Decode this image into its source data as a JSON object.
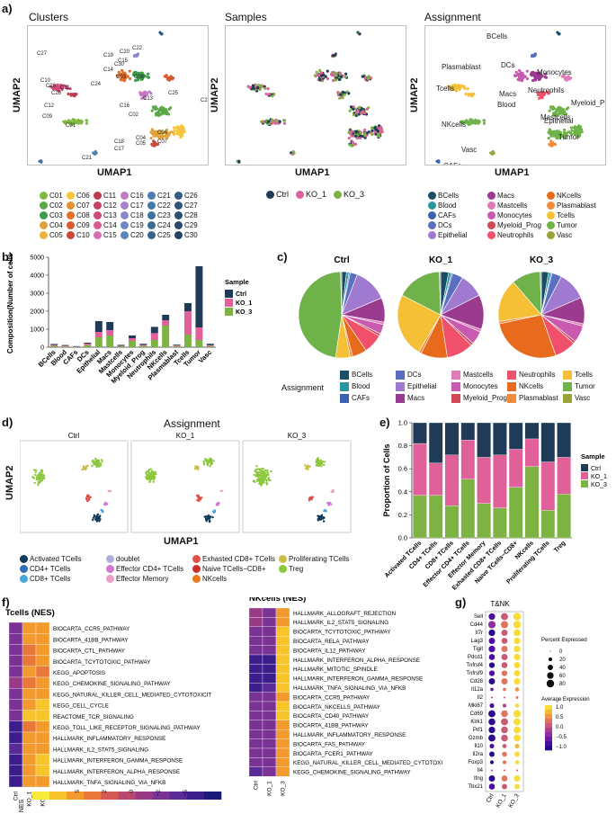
{
  "panels": {
    "a": "a)",
    "b": "b)",
    "c": "c)",
    "d": "d)",
    "e": "e)",
    "f": "f)",
    "g": "g)"
  },
  "umap_titles": {
    "clusters": "Clusters",
    "samples": "Samples",
    "assignment": "Assignment"
  },
  "axes": {
    "umap1": "UMAP1",
    "umap2": "UMAP2"
  },
  "clusters": {
    "labels": [
      "C01",
      "C02",
      "C03",
      "C04",
      "C05",
      "C06",
      "C07",
      "C08",
      "C09",
      "C10",
      "C11",
      "C12",
      "C13",
      "C14",
      "C15",
      "C16",
      "C17",
      "C18",
      "C19",
      "C20",
      "C21",
      "C22",
      "C23",
      "C24",
      "C25",
      "C26",
      "C27",
      "C28",
      "C29",
      "C30"
    ],
    "colors": [
      "#7fba3f",
      "#5aa847",
      "#3e9b4a",
      "#e0a33a",
      "#f0b43c",
      "#f6c63d",
      "#e8912f",
      "#e36f2a",
      "#d85a2e",
      "#c9483a",
      "#bd3c48",
      "#c44461",
      "#cf4a7a",
      "#d85b95",
      "#d470b0",
      "#c27bc3",
      "#a883c8",
      "#8a88c9",
      "#6f88c5",
      "#5a85bd",
      "#4b7fb2",
      "#447aa9",
      "#3f729e",
      "#3b6b95",
      "#37648b",
      "#335d82",
      "#2f557a",
      "#2b4f72",
      "#28496b",
      "#244263"
    ],
    "map_labels": [
      "C01",
      "C02",
      "C03",
      "C04",
      "C05",
      "C06",
      "C07",
      "C08",
      "C09",
      "C10",
      "C11",
      "C12",
      "C13",
      "C14",
      "C15",
      "C16",
      "C17",
      "C18",
      "C19",
      "C20",
      "C21",
      "C22",
      "C23",
      "C24",
      "C25",
      "C26",
      "C27",
      "C28",
      "C29",
      "C30"
    ]
  },
  "samples": {
    "names": [
      "Ctrl",
      "KO_1",
      "KO_3"
    ],
    "colors": [
      "#1f3b57",
      "#e0609a",
      "#7db342"
    ]
  },
  "assignment": {
    "names": [
      "BCells",
      "Blood",
      "CAFs",
      "DCs",
      "Epithelial",
      "Macs",
      "Mastcells",
      "Monocytes",
      "Myeloid_Prog",
      "Neutrophils",
      "NKcells",
      "Plasmablast",
      "Tcells",
      "Tumor",
      "Vasc"
    ],
    "colors": [
      "#1c4d66",
      "#2a96a0",
      "#3a62b0",
      "#5b6fc0",
      "#a07ad0",
      "#9a3b8f",
      "#e07ab8",
      "#c85ab0",
      "#cf4a55",
      "#f0506a",
      "#e86a1c",
      "#f08c3c",
      "#f6c036",
      "#6fb24a",
      "#9aa33a"
    ],
    "map_labels": [
      "BCells",
      "Plasmablast",
      "DCs",
      "Monocytes",
      "Tcells",
      "Neutrophils",
      "Macs",
      "Mastcells",
      "Blood",
      "Myeloid_Prog",
      "Epithelial",
      "NKcells",
      "Tumor",
      "Vasc",
      "CAFs"
    ],
    "legend_title": "Assignment"
  },
  "tnk": {
    "names": [
      "Activated TCells",
      "CD4+ TCells",
      "CD8+ TCells",
      "doublet",
      "Effector CD4+ TCells",
      "Effector Memory",
      "Exhasted CD8+ TCells",
      "Naive TCells−CD8+",
      "NKcells",
      "Proliferating TCells",
      "Treg"
    ],
    "colors": [
      "#123d5a",
      "#2f70b8",
      "#4aa6d8",
      "#b0b0d8",
      "#d07ad0",
      "#e8a0c8",
      "#e0504a",
      "#c83030",
      "#e87a1c",
      "#c9c04a",
      "#8cc83c"
    ],
    "title": "Assignment",
    "facets": [
      "Ctrl",
      "KO_1",
      "KO_3"
    ]
  },
  "chart_data": [
    {
      "type": "bar",
      "title": "",
      "xlabel": "",
      "ylabel": "Composition(Number of cells)",
      "ylim": [
        0,
        5000
      ],
      "yticks": [
        0,
        1000,
        2000,
        3000,
        4000,
        5000
      ],
      "categories": [
        "BCells",
        "Blood",
        "CAFs",
        "DCs",
        "Epithelial",
        "Macs",
        "Mastcells",
        "Monocytes",
        "Myeloid_Prog",
        "Neutrophils",
        "NKcells",
        "Plasmablast",
        "Tcells",
        "Tumor",
        "Vasc"
      ],
      "legend_title": "Sample",
      "series": [
        {
          "name": "Ctrl",
          "color": "#1f3b57",
          "values": [
            50,
            40,
            20,
            50,
            600,
            450,
            50,
            150,
            60,
            350,
            300,
            40,
            450,
            3400,
            80
          ]
        },
        {
          "name": "KO_1",
          "color": "#e0609a",
          "values": [
            60,
            40,
            20,
            80,
            300,
            300,
            30,
            150,
            60,
            380,
            300,
            40,
            1300,
            700,
            50
          ]
        },
        {
          "name": "KO_3",
          "color": "#7db342",
          "values": [
            70,
            40,
            20,
            120,
            550,
            650,
            50,
            350,
            70,
            400,
            1200,
            60,
            700,
            400,
            60
          ]
        }
      ]
    },
    {
      "type": "pie",
      "legend_title": "Assignment",
      "pies": [
        {
          "name": "Ctrl",
          "values": [
            2,
            1,
            0.5,
            3,
            14,
            10,
            1,
            4,
            1,
            8,
            6,
            1,
            6,
            52,
            0.5
          ]
        },
        {
          "name": "KO_1",
          "values": [
            3,
            1,
            0.5,
            4,
            9,
            13,
            1,
            5,
            1,
            10,
            10,
            1,
            24,
            17,
            0.5
          ]
        },
        {
          "name": "KO_3",
          "values": [
            3,
            1,
            0.5,
            4,
            12,
            11,
            1,
            7,
            1,
            9,
            30,
            1,
            18,
            12,
            0.5
          ]
        }
      ]
    },
    {
      "type": "bar",
      "stacked": "proportion",
      "ylabel": "Proportion of Cells",
      "ylim": [
        0,
        1
      ],
      "yticks": [
        "0.0",
        "0.2",
        "0.4",
        "0.6",
        "0.8",
        "1.0"
      ],
      "categories": [
        "Activated TCells",
        "CD4+ TCells",
        "CD8+ TCells",
        "Effector CD4+ TCells",
        "Effector Memory",
        "Exhasted CD8+ TCells",
        "Naive TCells−CD8+",
        "NKcells",
        "Proliferating TCells",
        "Treg"
      ],
      "legend_title": "Sample",
      "series": [
        {
          "name": "Ctrl",
          "color": "#1f3b57",
          "values": [
            0.18,
            0.35,
            0.28,
            0.15,
            0.3,
            0.28,
            0.23,
            0.14,
            0.34,
            0.3
          ]
        },
        {
          "name": "KO_1",
          "color": "#e0609a",
          "values": [
            0.45,
            0.28,
            0.44,
            0.34,
            0.4,
            0.46,
            0.33,
            0.24,
            0.42,
            0.32
          ]
        },
        {
          "name": "KO_3",
          "color": "#7db342",
          "values": [
            0.37,
            0.37,
            0.28,
            0.51,
            0.3,
            0.26,
            0.44,
            0.62,
            0.24,
            0.38
          ]
        }
      ]
    },
    {
      "type": "heatmap",
      "title": "Tcells  (NES)",
      "columns": [
        "Ctrl",
        "KO_1",
        "KO_3"
      ],
      "rows": [
        "BIOCARTA_CCR5_PATHWAY",
        "BIOCARTA_41BB_PATHWAY",
        "BIOCARTA_CTL_PATHWAY",
        "BIOCARTA_TCYTOTOXIC_PATHWAY",
        "KEGG_APOPTOSIS",
        "KEGG_CHEMOKINE_SIGNALING_PATHWAY",
        "KEGG_NATURAL_KILLER_CELL_MEDIATED_CYTOTOXICIT",
        "KEGG_CELL_CYCLE",
        "REACTOME_TCR_SIGNALING",
        "KEGG_TOLL_LIKE_RECEPTOR_SIGNALING_PATHWAY",
        "HALLMARK_INFLAMMATORY_RESPONSE",
        "HALLMARK_IL2_STAT5_SIGNALING",
        "HALLMARK_INTERFERON_GAMMA_RESPONSE",
        "HALLMARK_INTERFERON_ALPHA_RESPONSE",
        "HALLMARK_TNFA_SIGNALING_VIA_NFKB"
      ],
      "values": [
        [
          -4,
          4,
          4
        ],
        [
          -4,
          4,
          4
        ],
        [
          -3,
          3,
          4
        ],
        [
          -3,
          3,
          4
        ],
        [
          -3,
          4,
          3
        ],
        [
          -2,
          3,
          4
        ],
        [
          -3,
          4,
          5
        ],
        [
          -3,
          4,
          6
        ],
        [
          -4,
          6,
          6
        ],
        [
          -6,
          3,
          4
        ],
        [
          -6,
          5,
          5
        ],
        [
          -5,
          5,
          5
        ],
        [
          -7,
          5,
          6
        ],
        [
          -7,
          5,
          6
        ],
        [
          -6,
          4,
          5
        ]
      ],
      "scale_label": "NES",
      "scale_ticks": [
        "5",
        "2",
        "0",
        "−2",
        "−5"
      ]
    },
    {
      "type": "heatmap",
      "title": "NKcells  (NES)",
      "columns": [
        "Ctrl",
        "KO_1",
        "KO_3"
      ],
      "rows": [
        "HALLMARK_ALLOGRAFT_REJECTION",
        "HALLMARK_IL2_STAT5_SIGNALING",
        "BIOCARTA_TCYTOTOXIC_PATHWAY",
        "BIOCARTA_RELA_PATHWAY",
        "BIOCARTA_IL12_PATHWAY",
        "HALLMARK_INTERFERON_ALPHA_RESPONSE",
        "HALLMARK_MITOTIC_SPINDLE",
        "HALLMARK_INTERFERON_GAMMA_RESPONSE",
        "HALLMARK_TNFA_SIGNALING_VIA_NFKB",
        "BIOCARTA_CCR5_PATHWAY",
        "BIOCARTA_NKCELLS_PATHWAY",
        "BIOCARTA_CD40_PATHWAY",
        "BIOCARTA_41BB_PATHWAY",
        "HALLMARK_INFLAMMATORY_RESPONSE",
        "BIOCARTA_FAS_PATHWAY",
        "BIOCARTA_FCER1_PATHWAY",
        "KEGG_NATURAL_KILLER_CELL_MEDIATED_CYTOTOXI",
        "KEGG_CHEMOKINE_SIGNALING_PATHWAY"
      ],
      "values": [
        [
          -2,
          -3,
          5
        ],
        [
          -2,
          -4,
          5
        ],
        [
          -3,
          -3,
          6
        ],
        [
          -3,
          -3,
          6
        ],
        [
          -4,
          -3,
          6
        ],
        [
          -6,
          -6,
          7
        ],
        [
          -6,
          -7,
          7
        ],
        [
          -6,
          -6,
          6
        ],
        [
          -7,
          -5,
          6
        ],
        [
          -3,
          -3,
          5
        ],
        [
          -3,
          -3,
          6
        ],
        [
          -3,
          -4,
          6
        ],
        [
          -3,
          -4,
          5
        ],
        [
          -4,
          -4,
          5
        ],
        [
          -3,
          -4,
          5
        ],
        [
          -3,
          -4,
          5
        ],
        [
          -4,
          -3,
          5
        ],
        [
          -5,
          -4,
          5
        ]
      ]
    },
    {
      "type": "scatter",
      "subtype": "dotplot",
      "title": "T&NK",
      "columns": [
        "Ctrl",
        "KO_1",
        "KO_3"
      ],
      "rows": [
        "Sell",
        "Cd44",
        "Il7r",
        "Lag3",
        "Tigit",
        "Pdcd1",
        "Tnfrsf4",
        "Tnfrsf9",
        "Cd28",
        "Il12a",
        "Il2",
        "Mki67",
        "Cd69",
        "Klrk1",
        "Prf1",
        "Gzmb",
        "Il10",
        "Il2ra",
        "Foxp3",
        "Il4",
        "Ifng",
        "Tbx21"
      ],
      "pct": [
        [
          60,
          70,
          80
        ],
        [
          75,
          75,
          80
        ],
        [
          60,
          55,
          70
        ],
        [
          55,
          50,
          60
        ],
        [
          60,
          55,
          60
        ],
        [
          50,
          55,
          60
        ],
        [
          45,
          50,
          55
        ],
        [
          45,
          45,
          55
        ],
        [
          55,
          55,
          60
        ],
        [
          15,
          15,
          25
        ],
        [
          5,
          5,
          10
        ],
        [
          30,
          20,
          25
        ],
        [
          70,
          65,
          75
        ],
        [
          65,
          70,
          70
        ],
        [
          60,
          65,
          70
        ],
        [
          70,
          65,
          70
        ],
        [
          30,
          25,
          30
        ],
        [
          40,
          35,
          40
        ],
        [
          20,
          20,
          25
        ],
        [
          5,
          5,
          5
        ],
        [
          55,
          50,
          55
        ],
        [
          50,
          40,
          40
        ]
      ],
      "expr": [
        [
          -0.8,
          0.2,
          1.0
        ],
        [
          -0.3,
          0.3,
          0.9
        ],
        [
          -0.9,
          0.1,
          1.0
        ],
        [
          -0.8,
          0.2,
          1.0
        ],
        [
          -0.7,
          0.3,
          1.0
        ],
        [
          -0.8,
          0.2,
          1.0
        ],
        [
          -0.9,
          0.2,
          1.0
        ],
        [
          -0.8,
          0.3,
          1.0
        ],
        [
          -0.9,
          0.4,
          1.0
        ],
        [
          -0.5,
          0.3,
          0.6
        ],
        [
          -0.2,
          0.1,
          0.3
        ],
        [
          -0.8,
          -0.2,
          0.9
        ],
        [
          -0.9,
          0.3,
          1.0
        ],
        [
          -1.0,
          0.2,
          1.0
        ],
        [
          -1.0,
          0.2,
          1.0
        ],
        [
          -0.9,
          0.2,
          1.0
        ],
        [
          -0.8,
          0.0,
          0.8
        ],
        [
          -0.9,
          0.3,
          1.0
        ],
        [
          -0.9,
          0.3,
          1.0
        ],
        [
          -0.2,
          0.0,
          0.2
        ],
        [
          -0.9,
          0.3,
          1.0
        ],
        [
          -0.7,
          0.2,
          0.9
        ]
      ],
      "size_legend_title": "Percent Expressed",
      "size_legend": [
        "0",
        "20",
        "40",
        "60",
        "80"
      ],
      "color_legend_title": "Average Expression",
      "color_legend": [
        "1.0",
        "0.5",
        "0.0",
        "−0.5",
        "−1.0"
      ]
    }
  ]
}
